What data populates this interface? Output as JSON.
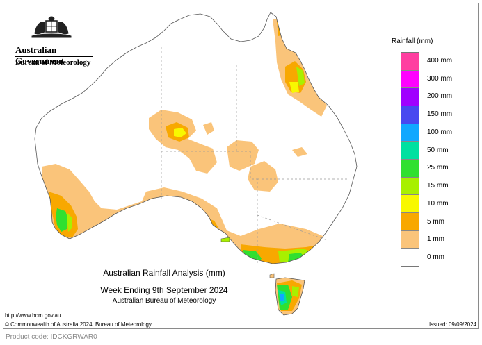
{
  "header": {
    "government": "Australian Government",
    "bureau": "Bureau of Meteorology"
  },
  "legend": {
    "title": "Rainfall (mm)",
    "items": [
      {
        "label": "400 mm",
        "color": "#ff3fa0"
      },
      {
        "label": "300 mm",
        "color": "#ff00ff"
      },
      {
        "label": "200 mm",
        "color": "#a000ff"
      },
      {
        "label": "150 mm",
        "color": "#4848f0"
      },
      {
        "label": "100 mm",
        "color": "#10a8ff"
      },
      {
        "label": "50 mm",
        "color": "#00e0a0"
      },
      {
        "label": "25 mm",
        "color": "#30e030"
      },
      {
        "label": "15 mm",
        "color": "#a8f000"
      },
      {
        "label": "10 mm",
        "color": "#f8f800"
      },
      {
        "label": "5 mm",
        "color": "#f8a800"
      },
      {
        "label": "1 mm",
        "color": "#fac47a"
      },
      {
        "label": "0 mm",
        "color": "#ffffff"
      }
    ]
  },
  "caption": {
    "line1": "Australian Rainfall Analysis (mm)",
    "line2": "Week Ending 9th September 2024",
    "line3": "Australian Bureau of Meteorology"
  },
  "footer": {
    "url": "http://www.bom.gov.au",
    "copyright": "© Commonwealth of Australia 2024, Bureau of Meteorology",
    "issued": "Issued: 09/09/2024",
    "product_code": "Product code: IDCKGRWAR0"
  },
  "map": {
    "colors": {
      "land": "#ffffff",
      "outline": "#555555",
      "border": "#999999",
      "r1": "#fac47a",
      "r5": "#f8a800",
      "r10": "#f8f800",
      "r15": "#a8f000",
      "r25": "#30e030",
      "r50": "#00e0a0",
      "r100": "#10a8ff"
    }
  }
}
